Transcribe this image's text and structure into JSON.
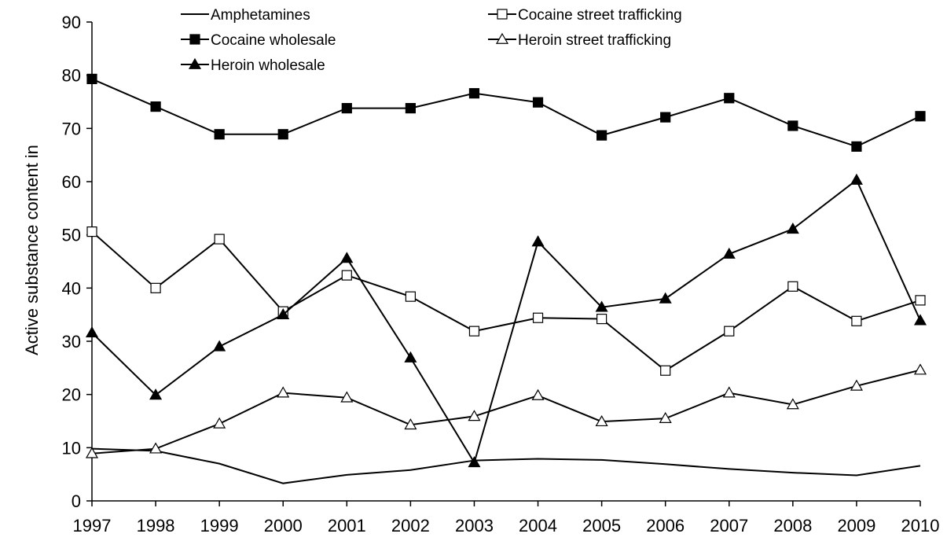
{
  "chart_data": {
    "type": "line",
    "ylabel": "Active substance content in",
    "xlabel": "",
    "ylim": [
      0,
      90
    ],
    "yticks": [
      0,
      10,
      20,
      30,
      40,
      50,
      60,
      70,
      80,
      90
    ],
    "categories": [
      "1997",
      "1998",
      "1999",
      "2000",
      "2001",
      "2002",
      "2003",
      "2004",
      "2005",
      "2006",
      "2007",
      "2008",
      "2009",
      "2010"
    ],
    "grid": false,
    "legend": "top",
    "series": [
      {
        "name": "Amphetamines",
        "marker": "none",
        "values": [
          9.8,
          9.4,
          7.0,
          3.3,
          4.9,
          5.8,
          7.6,
          7.9,
          7.7,
          6.9,
          6.0,
          5.3,
          4.8,
          6.6
        ]
      },
      {
        "name": "Cocaine street trafficking",
        "marker": "square-open",
        "values": [
          50.6,
          40.0,
          49.2,
          35.6,
          42.4,
          38.4,
          31.9,
          34.4,
          34.2,
          24.5,
          31.9,
          40.3,
          33.8,
          37.7
        ]
      },
      {
        "name": "Cocaine wholesale",
        "marker": "square-filled",
        "values": [
          79.3,
          74.1,
          68.9,
          68.9,
          73.8,
          73.8,
          76.6,
          74.9,
          68.7,
          72.1,
          75.7,
          70.5,
          66.6,
          72.3
        ]
      },
      {
        "name": "Heroin street trafficking",
        "marker": "triangle-open",
        "values": [
          8.9,
          9.8,
          14.5,
          20.3,
          19.4,
          14.3,
          15.9,
          19.8,
          14.9,
          15.5,
          20.3,
          18.1,
          21.6,
          24.6
        ]
      },
      {
        "name": "Heroin wholesale",
        "marker": "triangle-filled",
        "values": [
          31.6,
          19.9,
          29.0,
          35.0,
          45.6,
          26.9,
          7.2,
          48.7,
          36.4,
          38.0,
          46.4,
          51.1,
          60.3,
          33.9
        ]
      }
    ]
  }
}
